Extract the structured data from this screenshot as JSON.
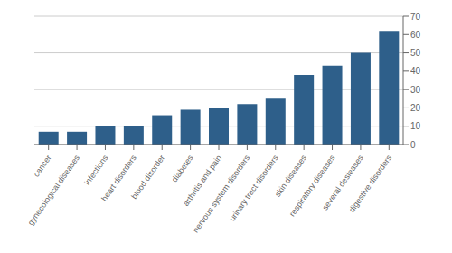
{
  "chart_data": {
    "type": "bar",
    "categories": [
      "cancer",
      "gynecological diseases",
      "infections",
      "heart disorders",
      "blood disorder",
      "diabetes",
      "arthritis and pain",
      "nervous system disorders",
      "urinary tract disorders",
      "skin diseases",
      "respiratory diseases",
      "several desieases",
      "digestive disorders"
    ],
    "values": [
      7,
      7,
      10,
      10,
      16,
      19,
      20,
      22,
      25,
      38,
      43,
      50,
      62
    ],
    "color": "#2E5F8A",
    "ylim": [
      0,
      70
    ],
    "yticks": [
      0,
      10,
      20,
      30,
      40,
      50,
      60,
      70
    ],
    "grid": true
  }
}
